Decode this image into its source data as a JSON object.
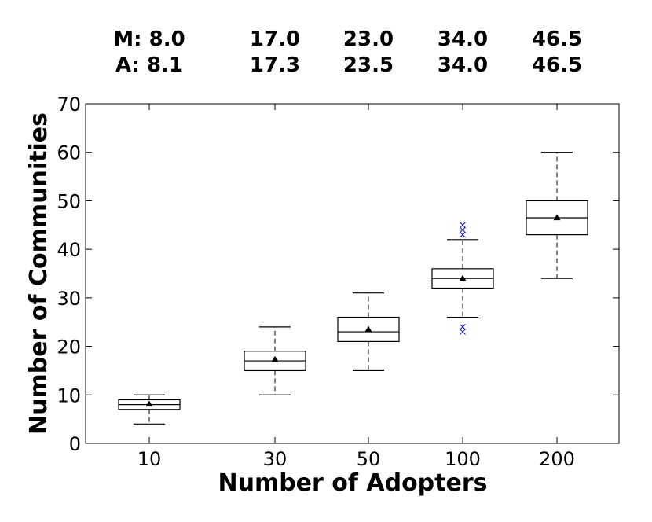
{
  "chart_data": {
    "type": "boxplot",
    "title": "",
    "xlabel": "Number of Adopters",
    "ylabel": "Number of Communities",
    "categories": [
      "10",
      "30",
      "50",
      "100",
      "200"
    ],
    "ylim": [
      0,
      70
    ],
    "yticks": [
      0,
      10,
      20,
      30,
      40,
      50,
      60,
      70
    ],
    "ytick_labels": [
      "0",
      "10",
      "20",
      "30",
      "40",
      "50",
      "60",
      "70"
    ],
    "grid": false,
    "boxes": [
      {
        "category": "10",
        "whisker_low": 4,
        "q1": 7,
        "median": 8,
        "q3": 9,
        "whisker_high": 10,
        "mean": 8.1,
        "outliers": []
      },
      {
        "category": "30",
        "whisker_low": 10,
        "q1": 15,
        "median": 17,
        "q3": 19,
        "whisker_high": 24,
        "mean": 17.3,
        "outliers": []
      },
      {
        "category": "50",
        "whisker_low": 15,
        "q1": 21,
        "median": 23,
        "q3": 26,
        "whisker_high": 31,
        "mean": 23.5,
        "outliers": []
      },
      {
        "category": "100",
        "whisker_low": 26,
        "q1": 32,
        "median": 34,
        "q3": 36,
        "whisker_high": 42,
        "mean": 34.0,
        "outliers": [
          23,
          24,
          43,
          44,
          45
        ]
      },
      {
        "category": "200",
        "whisker_low": 34,
        "q1": 43,
        "median": 46.5,
        "q3": 50,
        "whisker_high": 60,
        "mean": 46.5,
        "outliers": []
      }
    ],
    "annotations": {
      "median_row": [
        "M: 8.0",
        "17.0",
        "23.0",
        "34.0",
        "46.5"
      ],
      "mean_row": [
        "A: 8.1",
        "17.3",
        "23.5",
        "34.0",
        "46.5"
      ]
    },
    "colors": {
      "box": "#000000",
      "outlier": "#0000cc",
      "mean_marker": "#000000"
    }
  }
}
